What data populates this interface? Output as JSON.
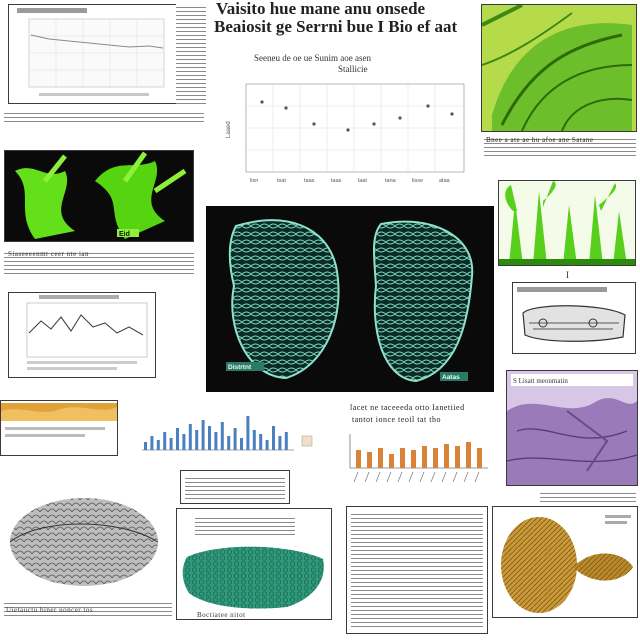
{
  "headline": {
    "line1": "Vaisito hue mane anu onsede",
    "line2": "Beaiosit ge Serrni bue I Bio ef aat",
    "line3": "Seeneu de oe ue Sunim aoe asen",
    "line4": "Stallicie"
  },
  "scatter_axis": {
    "ylabel": "Laaed",
    "xticks": [
      "lisn",
      "tsat",
      "taas",
      "taas",
      "laat",
      "tana",
      "lisse",
      "ataa"
    ],
    "caption": "tesd"
  },
  "caption_top_right": "Bnee a ate ae hu afoe ane Satane",
  "caption_left_mid": "Siaseeeenmt ceer nte ian",
  "specimen_labels": {
    "green_left": "Eid",
    "cross_left": "Distrtnt",
    "cross_right": "Aatas"
  },
  "right_mid_caption": "I",
  "purple_caption": "S Lisatt meonmatin",
  "bar_panel_title": "lacet ne taceeeda otto Ianetiied",
  "bar_panel_sub": "tantot ionce teoil tat tho",
  "bottom_caption_left": "Uietauctu biner uoncer tos",
  "bottom_caption_mid": "Boctiatee nitot",
  "colors": {
    "green": "#4fd11c",
    "teal": "#2f9a7a",
    "orange": "#d9823a",
    "bar_blue": "#4a7fc1",
    "purple": "#8a6aa8",
    "gold": "#c89a3a"
  }
}
